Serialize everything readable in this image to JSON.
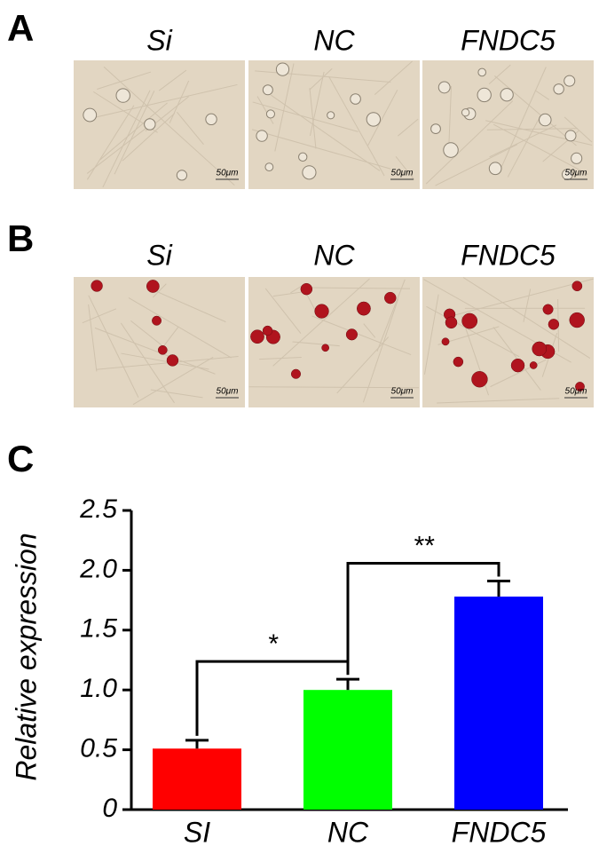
{
  "panels": [
    {
      "label": "A",
      "images": [
        {
          "title": "Si",
          "scale": "50μm"
        },
        {
          "title": "NC",
          "scale": "50μm"
        },
        {
          "title": "FNDC5",
          "scale": "50μm"
        }
      ]
    },
    {
      "label": "B",
      "images": [
        {
          "title": "Si",
          "scale": "50μm"
        },
        {
          "title": "NC",
          "scale": "50μm"
        },
        {
          "title": "FNDC5",
          "scale": "50μm"
        }
      ]
    }
  ],
  "chart_data": {
    "type": "bar",
    "label": "C",
    "ylabel": "Relative expression",
    "categories": [
      "SI",
      "NC",
      "FNDC5"
    ],
    "values": [
      0.51,
      1.0,
      1.78
    ],
    "errors": [
      0.07,
      0.09,
      0.13
    ],
    "colors": [
      "#ff0000",
      "#00ff00",
      "#0000ff"
    ],
    "ylim": [
      0,
      2.5
    ],
    "yticks": [
      0,
      0.5,
      {
        "value": 1,
        "label": "1.0"
      },
      1.5,
      {
        "value": 2,
        "label": "2.0"
      },
      2.5
    ],
    "annotations": [
      "*",
      "**"
    ]
  }
}
